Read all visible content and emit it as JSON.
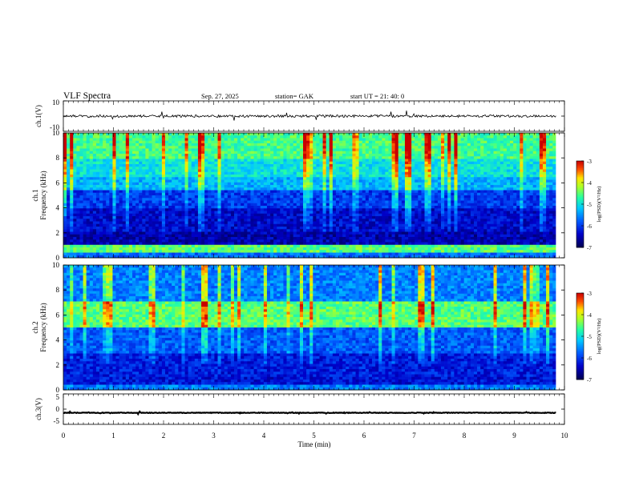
{
  "header": {
    "title": "VLF  Spectra",
    "date": "Sep. 27, 2025",
    "station": "station= GAK",
    "start": "start  UT  =   21: 40: 0"
  },
  "chart_data": [
    {
      "type": "line",
      "name": "ch1-waveform",
      "ylabel": "ch.1(V)",
      "ylim": [
        -10,
        10
      ],
      "yticks": [
        "10",
        "-10"
      ],
      "baseline": 0,
      "xlim": [
        0,
        9.83
      ]
    },
    {
      "type": "heatmap",
      "name": "ch1-spectrogram",
      "ylabel": "ch.1\nFrequency  (kHz)",
      "ylim": [
        0,
        10
      ],
      "yticks": [
        "0",
        "2",
        "4",
        "6",
        "8",
        "10"
      ],
      "xlim": [
        0,
        9.83
      ],
      "colorbar": {
        "label": "log(PSD)(V²/Hz)",
        "range": [
          -7,
          -3
        ],
        "ticks": [
          "-3",
          "-4",
          "-5",
          "-6",
          "-7"
        ]
      },
      "bands": [
        {
          "from": 0.0,
          "to": 0.5,
          "level": 0.32
        },
        {
          "from": 0.5,
          "to": 1.0,
          "level": 0.62
        },
        {
          "from": 1.0,
          "to": 2.0,
          "level": 0.12
        },
        {
          "from": 2.0,
          "to": 4.0,
          "level": 0.16
        },
        {
          "from": 4.0,
          "to": 5.5,
          "level": 0.25
        },
        {
          "from": 5.5,
          "to": 6.5,
          "level": 0.42
        },
        {
          "from": 6.5,
          "to": 8.0,
          "level": 0.5
        },
        {
          "from": 8.0,
          "to": 10.0,
          "level": 0.6
        }
      ]
    },
    {
      "type": "heatmap",
      "name": "ch2-spectrogram",
      "ylabel": "ch.2\nFrequency  (kHz)",
      "ylim": [
        0,
        10
      ],
      "yticks": [
        "0",
        "2",
        "4",
        "6",
        "8",
        "10"
      ],
      "xlim": [
        0,
        9.83
      ],
      "colorbar": {
        "label": "log(PSD)(V²/Hz)",
        "range": [
          -7,
          -3
        ],
        "ticks": [
          "-3",
          "-4",
          "-5",
          "-6",
          "-7"
        ]
      },
      "bands": [
        {
          "from": 0.0,
          "to": 0.5,
          "level": 0.35
        },
        {
          "from": 0.5,
          "to": 1.0,
          "level": 0.18
        },
        {
          "from": 1.0,
          "to": 3.0,
          "level": 0.2
        },
        {
          "from": 3.0,
          "to": 5.0,
          "level": 0.3
        },
        {
          "from": 5.0,
          "to": 7.0,
          "level": 0.62
        },
        {
          "from": 7.0,
          "to": 10.0,
          "level": 0.35
        }
      ]
    },
    {
      "type": "line",
      "name": "ch3-waveform",
      "ylabel": "ch.3(V)",
      "ylim": [
        -5,
        5
      ],
      "yticks": [
        "5",
        "0",
        "-5"
      ],
      "baseline": -1.2,
      "xlim": [
        0,
        9.83
      ]
    }
  ],
  "xaxis": {
    "label": "Time  (min)",
    "range": [
      0,
      10
    ],
    "ticks": [
      "0",
      "1",
      "2",
      "3",
      "4",
      "5",
      "6",
      "7",
      "8",
      "9",
      "10"
    ]
  }
}
